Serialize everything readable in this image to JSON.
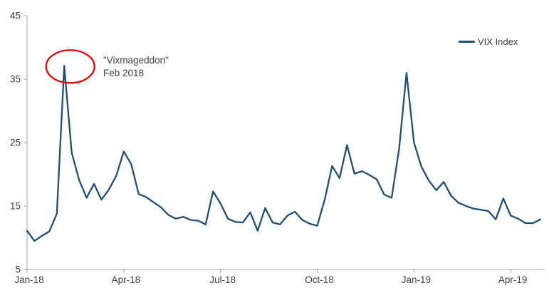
{
  "chart_data": {
    "type": "line",
    "title": "",
    "grid": false,
    "legend": {
      "label": "VIX Index",
      "position": "top-right"
    },
    "x_axis": {
      "unit": "weekly, Jan 2018 - May 2019",
      "tick_labels": [
        "Jan-18",
        "Apr-18",
        "Jul-18",
        "Oct-18",
        "Jan-19",
        "Apr-19"
      ],
      "tick_week_indices": [
        0,
        13,
        26,
        39,
        52,
        65
      ]
    },
    "y_axis": {
      "ticks": [
        5,
        15,
        25,
        35,
        45
      ],
      "range": [
        5,
        45
      ]
    },
    "series": [
      {
        "name": "VIX Index",
        "color": "#1f4e79",
        "values": [
          11.1,
          9.5,
          10.3,
          11.0,
          13.8,
          37.1,
          23.4,
          19.1,
          16.3,
          18.5,
          16.0,
          17.6,
          19.8,
          23.6,
          21.6,
          16.9,
          16.4,
          15.6,
          14.8,
          13.6,
          13.0,
          13.3,
          12.8,
          12.7,
          12.1,
          17.3,
          15.4,
          13.0,
          12.5,
          12.4,
          14.0,
          11.1,
          14.7,
          12.4,
          12.1,
          13.5,
          14.1,
          12.8,
          12.2,
          11.9,
          16.0,
          21.3,
          19.4,
          24.6,
          20.1,
          20.5,
          19.9,
          19.2,
          16.8,
          16.3,
          24.0,
          36.0,
          25.0,
          21.2,
          19.0,
          17.5,
          18.8,
          16.6,
          15.5,
          15.0,
          14.6,
          14.4,
          14.2,
          12.9,
          16.2,
          13.5,
          13.0,
          12.3,
          12.3,
          12.9
        ]
      }
    ],
    "annotation": {
      "line1": "\"Vixmageddon\"",
      "line2": "Feb 2018",
      "circled_point": {
        "week_index": 5,
        "value": 37.1
      }
    }
  },
  "colors": {
    "line": "#1f4e79",
    "axis": "#a6a6a6",
    "tick_text": "#404040",
    "annotation_text": "#3d3d3d",
    "annotation_ellipse": "#e60f0f",
    "background": "#ffffff"
  }
}
